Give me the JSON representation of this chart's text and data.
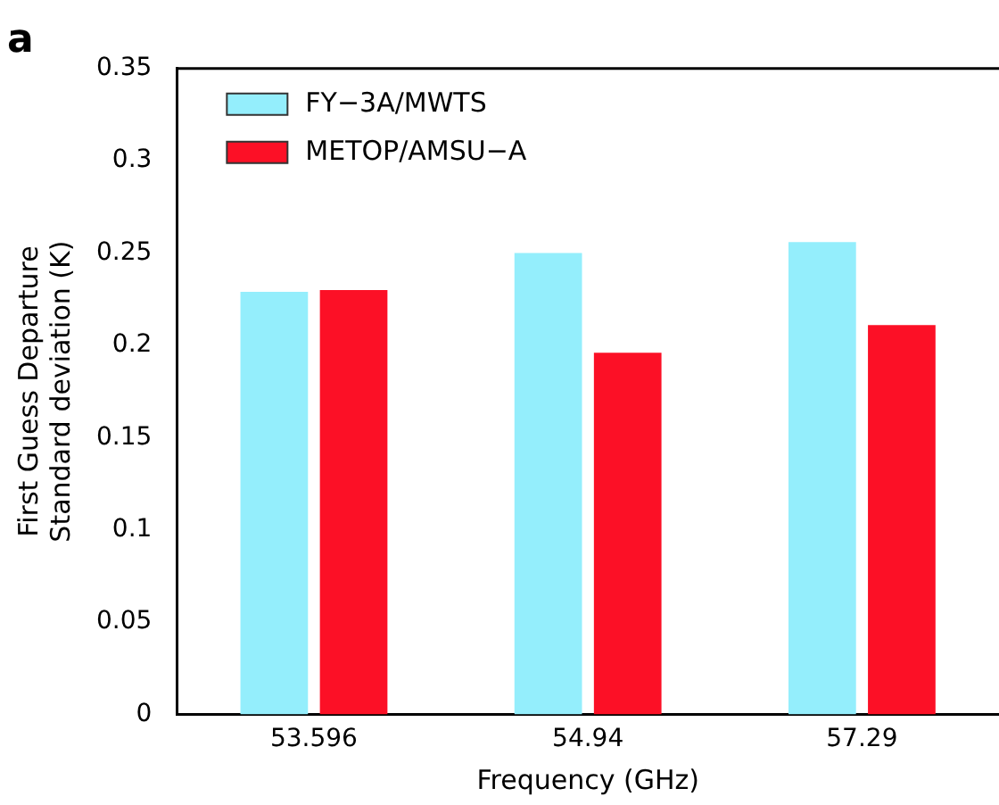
{
  "chart_data": {
    "type": "bar",
    "title": "a",
    "xlabel": "Frequency (GHz)",
    "ylabel": "First Guess Departure\nStandard deviation (K)",
    "categories": [
      "53.596",
      "54.94",
      "57.29"
    ],
    "series": [
      {
        "name": "FY−3A/MWTS",
        "color": "#94eefc",
        "values": [
          0.229,
          0.25,
          0.256
        ]
      },
      {
        "name": "METOP/AMSU−A",
        "color": "#fc1026",
        "values": [
          0.23,
          0.196,
          0.211
        ]
      }
    ],
    "ylim": [
      0,
      0.35
    ],
    "yticks": [
      {
        "value": 0,
        "label": "0"
      },
      {
        "value": 0.05,
        "label": "0.05"
      },
      {
        "value": 0.1,
        "label": "0.1"
      },
      {
        "value": 0.15,
        "label": "0.15"
      },
      {
        "value": 0.2,
        "label": "0.2"
      },
      {
        "value": 0.25,
        "label": "0.25"
      },
      {
        "value": 0.3,
        "label": "0.3"
      },
      {
        "value": 0.35,
        "label": "0.35"
      }
    ],
    "grid": false,
    "legend": "top left"
  }
}
